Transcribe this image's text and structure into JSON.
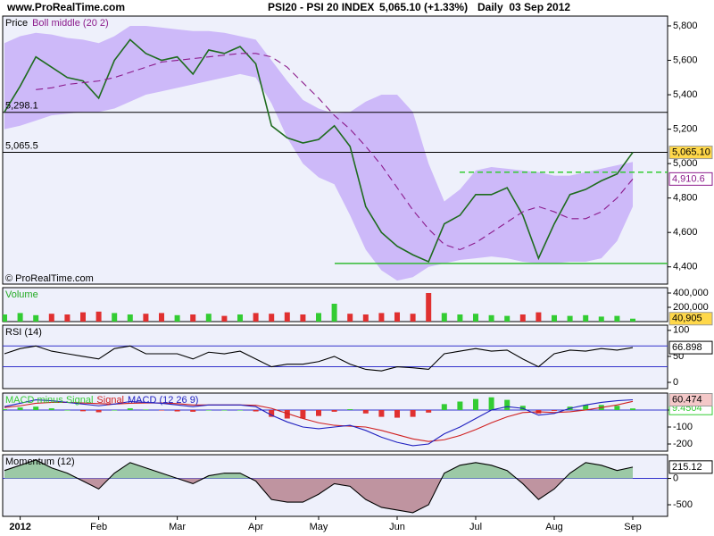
{
  "header": {
    "site": "www.ProRealTime.com",
    "instrument": "PSI20 - PSI 20 INDEX",
    "quote": "5,065.10 (+1.33%)",
    "period": "Daily  03 Sep 2012"
  },
  "chart_data": [
    {
      "type": "line",
      "title": "Price",
      "credit": "© ProRealTime.com",
      "ylim": [
        4300,
        5857
      ],
      "yticks": [
        {
          "value": 4400,
          "label": "4,400"
        },
        {
          "value": 4600,
          "label": "4,600"
        },
        {
          "value": 4800,
          "label": "4,800"
        },
        {
          "value": 5000,
          "label": "5,000"
        },
        {
          "value": 5200,
          "label": "5,200"
        },
        {
          "value": 5400,
          "label": "5,400"
        },
        {
          "value": 5600,
          "label": "5,600"
        },
        {
          "value": 5800,
          "label": "5,800"
        }
      ],
      "band": {
        "color": "#cdb9f9",
        "upper": [
          5700,
          5740,
          5760,
          5750,
          5730,
          5720,
          5700,
          5740,
          5800,
          5800,
          5790,
          5780,
          5770,
          5770,
          5760,
          5740,
          5720,
          5600,
          5480,
          5370,
          5320,
          5290,
          5300,
          5360,
          5400,
          5400,
          5300,
          5000,
          4780,
          4850,
          4960,
          4980,
          4970,
          4960,
          4950,
          4930,
          4930,
          4950,
          4970,
          4990,
          5010
        ],
        "lower": [
          5200,
          5220,
          5250,
          5280,
          5290,
          5300,
          5300,
          5320,
          5360,
          5400,
          5420,
          5440,
          5460,
          5480,
          5500,
          5520,
          5500,
          5350,
          5150,
          5000,
          4920,
          4880,
          4700,
          4500,
          4380,
          4320,
          4340,
          4400,
          4420,
          4440,
          4450,
          4460,
          4450,
          4430,
          4420,
          4420,
          4430,
          4430,
          4450,
          4550,
          4750
        ]
      },
      "hlines": [
        {
          "value": 5298.1,
          "label": "5,298.1",
          "color": "#000000"
        },
        {
          "value": 5065.5,
          "label": "5,065.5",
          "color": "#000000"
        },
        {
          "value": 4950,
          "color": "#33cc33",
          "dashed": true
        },
        {
          "value": 4420,
          "color": "#33bb33"
        }
      ],
      "series": [
        {
          "color": "#1e6b1e",
          "tag": "5,065.10",
          "tag_fill": "#ffd84a",
          "values": [
            5300,
            5450,
            5620,
            5560,
            5500,
            5480,
            5380,
            5600,
            5720,
            5640,
            5600,
            5620,
            5520,
            5660,
            5640,
            5680,
            5580,
            5220,
            5150,
            5120,
            5140,
            5220,
            5100,
            4750,
            4600,
            4520,
            4470,
            4430,
            4650,
            4700,
            4820,
            4820,
            4860,
            4700,
            4450,
            4650,
            4820,
            4850,
            4900,
            4940,
            5065.1
          ]
        },
        {
          "name": "Boll middle (20 2)",
          "color": "#8b1a8b",
          "dashed": true,
          "tag": "4,910.6",
          "values": [
            null,
            null,
            5430,
            5440,
            5460,
            5470,
            5480,
            5500,
            5530,
            5560,
            5590,
            5600,
            5610,
            5620,
            5630,
            5640,
            5640,
            5620,
            5560,
            5470,
            5380,
            5280,
            5200,
            5100,
            4990,
            4860,
            4730,
            4620,
            4530,
            4500,
            4540,
            4600,
            4660,
            4720,
            4750,
            4720,
            4680,
            4680,
            4720,
            4800,
            4910.6
          ]
        }
      ]
    },
    {
      "type": "bar",
      "title": "Volume",
      "title_color": "#22aa22",
      "ylim": [
        0,
        475000
      ],
      "yticks": [
        {
          "value": 200000,
          "label": "200,000"
        },
        {
          "value": 400000,
          "label": "400,000"
        }
      ],
      "series": [
        {
          "color": "#33cc33",
          "down_color": "#e03030",
          "tag": "40,905",
          "tag_fill": "#ffd84a",
          "values": [
            100000,
            120000,
            90000,
            110000,
            100000,
            130000,
            140000,
            120000,
            100000,
            110000,
            120000,
            90000,
            100000,
            110000,
            80000,
            100000,
            120000,
            110000,
            130000,
            100000,
            120000,
            250000,
            110000,
            100000,
            120000,
            130000,
            110000,
            400000,
            120000,
            100000,
            110000,
            90000,
            80000,
            100000,
            130000,
            90000,
            80000,
            90000,
            70000,
            80000,
            40905
          ]
        }
      ]
    },
    {
      "type": "line",
      "title": "RSI (14)",
      "ylim": [
        -12,
        110
      ],
      "yticks": [
        0,
        50,
        100
      ],
      "hlines": [
        {
          "value": 70,
          "color": "#3333cc"
        },
        {
          "value": 30,
          "color": "#3333cc"
        }
      ],
      "series": [
        {
          "color": "#000000",
          "tag": "66.898",
          "values": [
            55,
            65,
            70,
            60,
            55,
            50,
            45,
            65,
            70,
            55,
            55,
            55,
            45,
            58,
            55,
            60,
            45,
            30,
            35,
            35,
            40,
            50,
            35,
            25,
            22,
            30,
            28,
            25,
            55,
            60,
            65,
            60,
            62,
            45,
            30,
            55,
            62,
            60,
            65,
            62,
            66.898
          ]
        }
      ]
    },
    {
      "type": "line",
      "ylim": [
        -242,
        100
      ],
      "yticks": [
        -200,
        -100,
        0
      ],
      "hlines": [
        {
          "value": 0,
          "color": "#3333cc"
        }
      ],
      "series": [
        {
          "name": "MACD minus Signal",
          "style": "bar",
          "color": "#33cc33",
          "down_color": "#e03030",
          "tag": "9.4504",
          "values": [
            5,
            15,
            20,
            10,
            0,
            -7,
            -13,
            0,
            10,
            3,
            -2,
            -8,
            -10,
            0,
            0,
            0,
            -8,
            -40,
            -50,
            -50,
            -35,
            -10,
            5,
            -20,
            -40,
            -45,
            -40,
            -15,
            35,
            50,
            65,
            75,
            60,
            25,
            -20,
            -5,
            20,
            30,
            30,
            25,
            9.4504
          ]
        },
        {
          "name": "Signal",
          "color": "#d02020",
          "values": [
            15,
            25,
            40,
            45,
            45,
            42,
            38,
            35,
            40,
            42,
            42,
            38,
            30,
            30,
            30,
            30,
            28,
            10,
            -20,
            -50,
            -75,
            -90,
            -95,
            -100,
            -120,
            -145,
            -170,
            -185,
            -175,
            -150,
            -115,
            -75,
            -40,
            -15,
            -10,
            -15,
            -10,
            0,
            15,
            30,
            51
          ]
        },
        {
          "name": "MACD (12 26 9)",
          "color": "#2020c0",
          "tag": "60.474",
          "tag_fill": "#f4c8c8",
          "values": [
            20,
            40,
            60,
            55,
            45,
            35,
            25,
            35,
            50,
            45,
            40,
            30,
            20,
            30,
            30,
            30,
            20,
            -30,
            -70,
            -100,
            -110,
            -100,
            -90,
            -120,
            -160,
            -190,
            -210,
            -200,
            -140,
            -100,
            -50,
            0,
            20,
            10,
            -30,
            -20,
            10,
            30,
            45,
            55,
            60.474
          ]
        }
      ]
    },
    {
      "type": "area",
      "title": "Momentum (12)",
      "ylim": [
        -720,
        450
      ],
      "yticks": [
        -500,
        0
      ],
      "hlines": [
        {
          "value": 0,
          "color": "#3333cc"
        }
      ],
      "categories": [
        null,
        "2012",
        null,
        null,
        null,
        null,
        "Feb",
        null,
        null,
        null,
        null,
        "Mar",
        null,
        null,
        null,
        null,
        "Apr",
        null,
        null,
        null,
        "May",
        null,
        null,
        null,
        null,
        "Jun",
        null,
        null,
        null,
        null,
        "Jul",
        null,
        null,
        null,
        null,
        "Aug",
        null,
        null,
        null,
        null,
        "Sep"
      ],
      "series": [
        {
          "color": "#000000",
          "fill_positive": "#9cc9a6",
          "fill_negative": "#bf94a0",
          "tag": "215.12",
          "values": [
            150,
            250,
            350,
            200,
            100,
            -50,
            -200,
            100,
            300,
            200,
            100,
            0,
            -100,
            50,
            100,
            100,
            -50,
            -400,
            -450,
            -450,
            -300,
            -100,
            -150,
            -400,
            -550,
            -600,
            -650,
            -500,
            100,
            250,
            300,
            250,
            150,
            -100,
            -400,
            -200,
            100,
            300,
            250,
            150,
            215.12
          ]
        }
      ]
    }
  ]
}
